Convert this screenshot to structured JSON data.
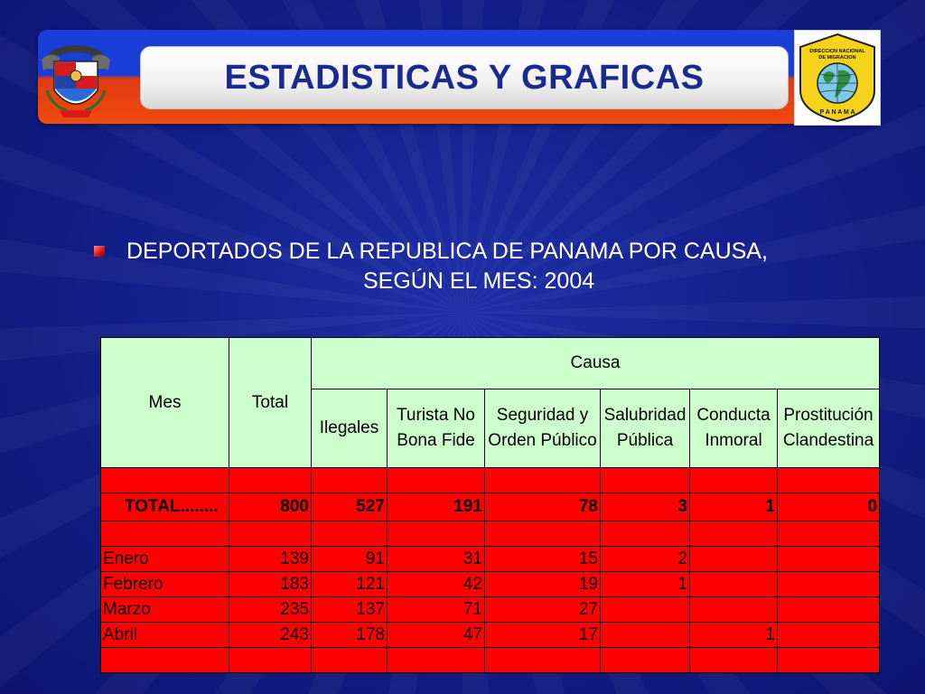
{
  "header": {
    "title": "ESTADISTICAS Y GRAFICAS",
    "logo_left": "panama-coat-of-arms",
    "logo_right_text_top": "DIRECCION NACIONAL DE MIGRACION",
    "logo_right_text_bottom": "PANAMA"
  },
  "subtitle": {
    "line1": "DEPORTADOS DE LA REPUBLICA DE PANAMA POR CAUSA,",
    "line2": "SEGÚN EL MES: 2004"
  },
  "table": {
    "col_mes": "Mes",
    "col_total": "Total",
    "col_group": "Causa",
    "causes": [
      "Ilegales",
      "Turista No Bona Fide",
      "Seguridad y Orden Público",
      "Salubridad Pública",
      "Conducta Inmoral",
      "Prostitución Clandestina"
    ],
    "total_row": {
      "label": "TOTAL........",
      "total": "800",
      "values": [
        "527",
        "191",
        "78",
        "3",
        "1",
        "0"
      ]
    },
    "rows": [
      {
        "mes": "Enero",
        "total": "139",
        "values": [
          "91",
          "31",
          "15",
          "2",
          "",
          ""
        ]
      },
      {
        "mes": "Febrero",
        "total": "183",
        "values": [
          "121",
          "42",
          "19",
          "1",
          "",
          ""
        ]
      },
      {
        "mes": "Marzo",
        "total": "235",
        "values": [
          "137",
          "71",
          "27",
          "",
          "",
          ""
        ]
      },
      {
        "mes": "Abril",
        "total": "243",
        "values": [
          "178",
          "47",
          "17",
          "",
          "1",
          ""
        ]
      }
    ]
  },
  "colors": {
    "background": "#14208c",
    "header_fill": "#ccffcc",
    "body_fill": "#ff0000",
    "title_text": "#1b2a8e"
  }
}
